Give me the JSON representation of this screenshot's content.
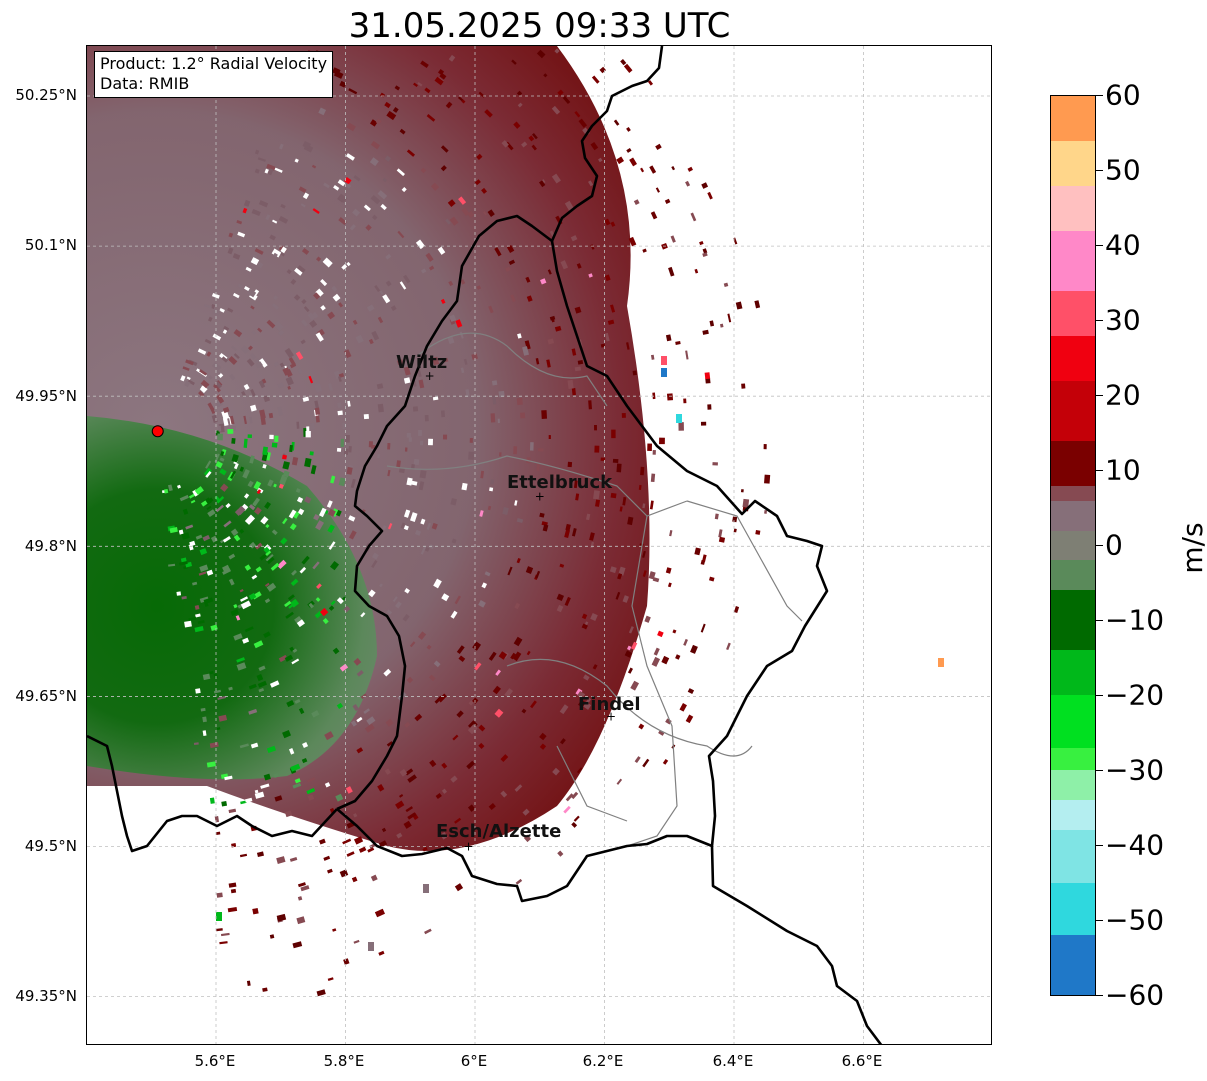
{
  "title": "31.05.2025 09:33 UTC",
  "info": {
    "product": "Product: 1.2° Radial Velocity",
    "data": "Data: RMIB"
  },
  "axes": {
    "lat_ticks": [
      "50.25°N",
      "50.1°N",
      "49.95°N",
      "49.8°N",
      "49.65°N",
      "49.5°N",
      "49.35°N"
    ],
    "lon_ticks": [
      "5.6°E",
      "5.8°E",
      "6°E",
      "6.2°E",
      "6.4°E",
      "6.6°E"
    ]
  },
  "colorbar": {
    "unit": "m/s",
    "min": -60,
    "max": 60,
    "tick_labels": [
      "60",
      "50",
      "40",
      "30",
      "20",
      "10",
      "0",
      "−10",
      "−20",
      "−30",
      "−40",
      "−50",
      "−60"
    ],
    "stops": [
      {
        "from": -60,
        "to": -52,
        "color": "#1f78c8"
      },
      {
        "from": -52,
        "to": -45,
        "color": "#2fd8de"
      },
      {
        "from": -45,
        "to": -38,
        "color": "#7fe4e4"
      },
      {
        "from": -38,
        "to": -34,
        "color": "#b4eef0"
      },
      {
        "from": -34,
        "to": -30,
        "color": "#8ef0a8"
      },
      {
        "from": -30,
        "to": -27,
        "color": "#38f040"
      },
      {
        "from": -27,
        "to": -20,
        "color": "#00e020"
      },
      {
        "from": -20,
        "to": -14,
        "color": "#00b81a"
      },
      {
        "from": -14,
        "to": -6,
        "color": "#006a00"
      },
      {
        "from": -6,
        "to": -2,
        "color": "#5a8a5a"
      },
      {
        "from": -2,
        "to": 2,
        "color": "#7e7f74"
      },
      {
        "from": 2,
        "to": 6,
        "color": "#866f79"
      },
      {
        "from": 6,
        "to": 8,
        "color": "#864a52"
      },
      {
        "from": 8,
        "to": 14,
        "color": "#7a0000"
      },
      {
        "from": 14,
        "to": 22,
        "color": "#c40008"
      },
      {
        "from": 22,
        "to": 28,
        "color": "#f00010"
      },
      {
        "from": 28,
        "to": 34,
        "color": "#ff5068"
      },
      {
        "from": 34,
        "to": 42,
        "color": "#ff88c8"
      },
      {
        "from": 42,
        "to": 48,
        "color": "#ffc0c0"
      },
      {
        "from": 48,
        "to": 54,
        "color": "#ffd68a"
      },
      {
        "from": 54,
        "to": 60,
        "color": "#ff9a50"
      }
    ]
  },
  "cities": [
    {
      "name": "Wiltz",
      "lon": 5.93,
      "lat": 49.97
    },
    {
      "name": "Ettelbruck",
      "lon": 6.1,
      "lat": 49.85
    },
    {
      "name": "Findel",
      "lon": 6.21,
      "lat": 49.63
    },
    {
      "name": "Esch/Alzette",
      "lon": 5.99,
      "lat": 49.5
    }
  ],
  "radar_site": {
    "lon": 5.51,
    "lat": 49.915
  },
  "colors": {
    "border": "#000000",
    "canton_lines": "#808080",
    "gridlines": "#c0c0c0",
    "radar_marker": "#ff0000"
  }
}
